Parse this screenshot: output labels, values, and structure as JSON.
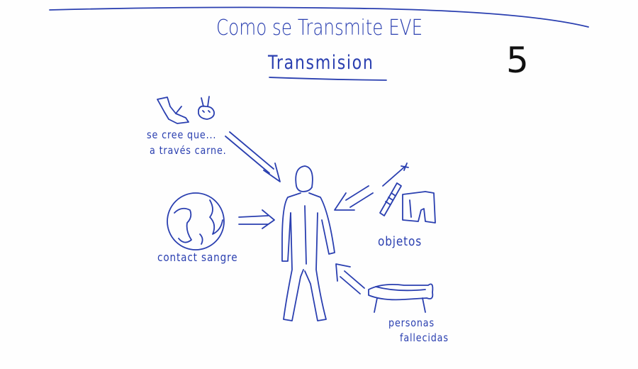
{
  "title": "Como se Transmite EVE",
  "subtitle": "Transmision",
  "page_number": "5",
  "labels": {
    "carne_line1": "se cree que...",
    "carne_line2": "a través carne.",
    "contact": "contact sangre",
    "objetos": "objetos",
    "personas_line1": "personas",
    "personas_line2": "fallecidas"
  },
  "ink_color": "#2a3fb0"
}
